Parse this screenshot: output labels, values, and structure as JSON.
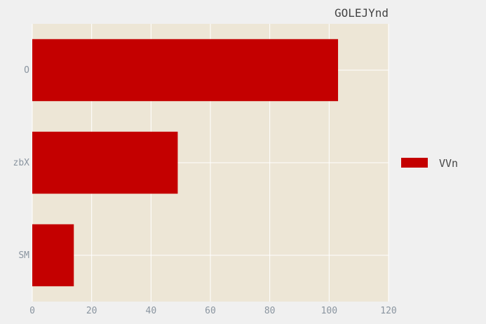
{
  "chart_data": {
    "type": "bar",
    "orientation": "horizontal",
    "title": "GOLEJYnd",
    "xlabel": "",
    "ylabel": "",
    "categories": [
      "O",
      "zbX",
      "SM"
    ],
    "series": [
      {
        "name": "VVn",
        "values": [
          103,
          49,
          14
        ]
      }
    ],
    "xlim": [
      0,
      120
    ],
    "xticks": [
      0,
      20,
      40,
      60,
      80,
      100,
      120
    ],
    "grid": true,
    "legend_position": "right"
  },
  "colors": {
    "plot_background": "#ede6d6",
    "figure_background": "#f0f0f0",
    "bar": "#c40000",
    "grid": "#ffffff"
  }
}
